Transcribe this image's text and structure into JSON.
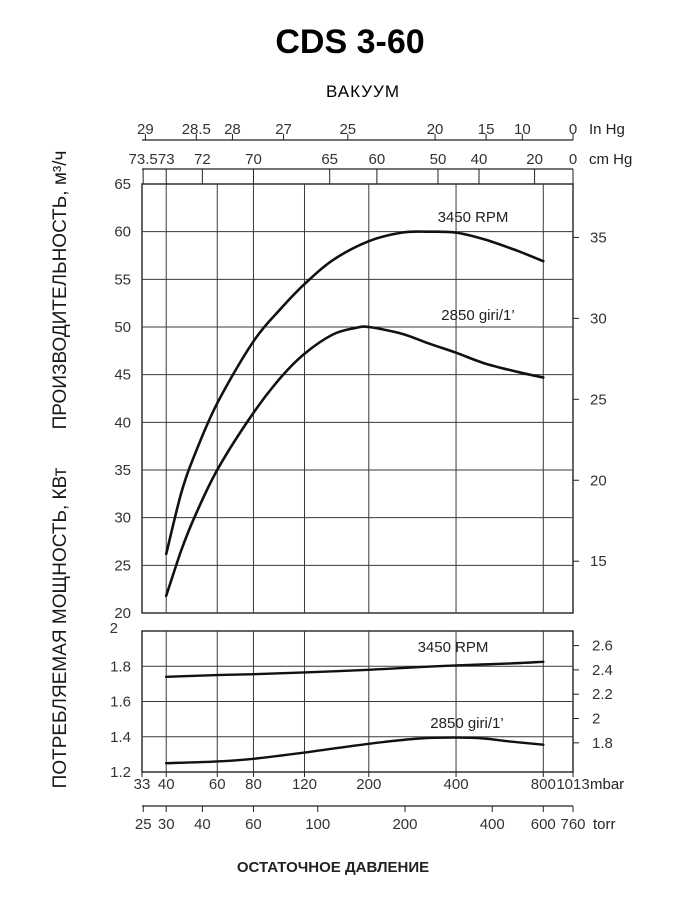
{
  "title": "CDS 3-60",
  "chart_data": [
    {
      "type": "line",
      "name": "capacity",
      "x_scale": "log",
      "xlim": [
        33,
        1013
      ],
      "ylim": [
        20,
        65
      ],
      "y_right_lim": [
        11.8,
        38.3
      ],
      "y_ticks": [
        20,
        25,
        30,
        35,
        40,
        45,
        50,
        55,
        60,
        65
      ],
      "y_right_ticks": [
        15,
        20,
        25,
        30,
        35
      ],
      "ylabel": "ПРОИЗВОДИТЕЛЬНОСТЬ, м³/ч",
      "top_axis_title": "ВАКУУМ",
      "top_axis_inHg": {
        "unit": "In Hg",
        "ticks": [
          {
            "label": "29",
            "mbar": 33.9
          },
          {
            "label": "28.5",
            "mbar": 50.8
          },
          {
            "label": "28",
            "mbar": 67.7
          },
          {
            "label": "27",
            "mbar": 101.6
          },
          {
            "label": "25",
            "mbar": 169.3
          },
          {
            "label": "20",
            "mbar": 338.6
          },
          {
            "label": "15",
            "mbar": 507.9
          },
          {
            "label": "10",
            "mbar": 677.3
          },
          {
            "label": "0",
            "mbar": 1013
          }
        ]
      },
      "top_axis_cmHg": {
        "unit": "cm Hg",
        "ticks": [
          {
            "label": "73.5",
            "mbar": 33.3
          },
          {
            "label": "73",
            "mbar": 40
          },
          {
            "label": "72",
            "mbar": 53.3
          },
          {
            "label": "70",
            "mbar": 80
          },
          {
            "label": "65",
            "mbar": 146.6
          },
          {
            "label": "60",
            "mbar": 213.3
          },
          {
            "label": "50",
            "mbar": 346.6
          },
          {
            "label": "40",
            "mbar": 480
          },
          {
            "label": "20",
            "mbar": 746.6
          },
          {
            "label": "0",
            "mbar": 1013
          }
        ]
      },
      "series": [
        {
          "name": "3450  RPM",
          "x": [
            40,
            45,
            50,
            60,
            80,
            100,
            120,
            150,
            200,
            260,
            320,
            400,
            500,
            650,
            800
          ],
          "y": [
            26.2,
            32.5,
            36.5,
            42.0,
            48.5,
            52.0,
            54.5,
            57.0,
            59.0,
            59.9,
            60.0,
            59.9,
            59.2,
            58.0,
            56.9
          ]
        },
        {
          "name": "2850  giri/1’",
          "x": [
            40,
            45,
            50,
            60,
            80,
            100,
            120,
            150,
            180,
            200,
            260,
            320,
            400,
            500,
            650,
            800
          ],
          "y": [
            21.8,
            26.5,
            30.0,
            35.0,
            41.0,
            44.8,
            47.2,
            49.2,
            49.9,
            50.0,
            49.3,
            48.3,
            47.3,
            46.2,
            45.3,
            44.7
          ]
        }
      ]
    },
    {
      "type": "line",
      "name": "power",
      "x_scale": "log",
      "xlim": [
        33,
        1013
      ],
      "ylim": [
        1.2,
        2.0
      ],
      "y_right_lim": [
        1.56,
        2.72
      ],
      "y_ticks": [
        1.2,
        1.4,
        1.6,
        1.8,
        2
      ],
      "y_right_ticks": [
        1.8,
        2,
        2.2,
        2.4,
        2.6
      ],
      "ylabel": "ПОТРЕБЛЯЕМАЯ МОЩНОСТЬ, КВт",
      "x_mbar": {
        "unit": "mbar",
        "ticks": [
          {
            "label": "33",
            "value": 33
          },
          {
            "label": "40",
            "value": 40
          },
          {
            "label": "60",
            "value": 60
          },
          {
            "label": "80",
            "value": 80
          },
          {
            "label": "120",
            "value": 120
          },
          {
            "label": "200",
            "value": 200
          },
          {
            "label": "400",
            "value": 400
          },
          {
            "label": "800",
            "value": 800
          },
          {
            "label": "1013",
            "value": 1013
          }
        ]
      },
      "x_torr": {
        "unit": "torr",
        "ticks": [
          {
            "label": "25",
            "torr": 25
          },
          {
            "label": "30",
            "torr": 30
          },
          {
            "label": "40",
            "torr": 40
          },
          {
            "label": "60",
            "torr": 60
          },
          {
            "label": "100",
            "torr": 100
          },
          {
            "label": "200",
            "torr": 200
          },
          {
            "label": "400",
            "torr": 400
          },
          {
            "label": "600",
            "torr": 600
          },
          {
            "label": "760",
            "torr": 760
          }
        ]
      },
      "xlabel": "ОСТАТОЧНОЕ ДАВЛЕНИЕ",
      "series": [
        {
          "name": "3450  RPM",
          "x": [
            40,
            60,
            80,
            120,
            200,
            300,
            400,
            600,
            800
          ],
          "y": [
            1.74,
            1.75,
            1.755,
            1.765,
            1.78,
            1.795,
            1.805,
            1.815,
            1.825
          ]
        },
        {
          "name": "2850  giri/1’",
          "x": [
            40,
            60,
            80,
            120,
            200,
            300,
            400,
            500,
            600,
            800
          ],
          "y": [
            1.25,
            1.26,
            1.275,
            1.31,
            1.36,
            1.39,
            1.395,
            1.39,
            1.375,
            1.355
          ]
        }
      ]
    }
  ]
}
